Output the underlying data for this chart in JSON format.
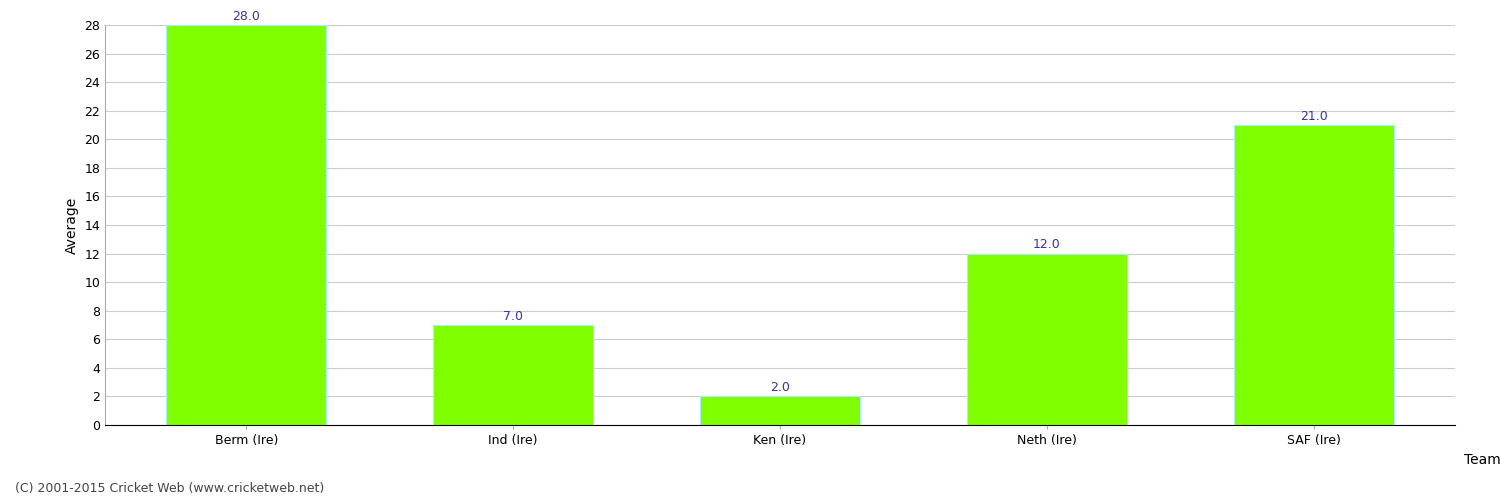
{
  "categories": [
    "Berm (Ire)",
    "Ind (Ire)",
    "Ken (Ire)",
    "Neth (Ire)",
    "SAF (Ire)"
  ],
  "values": [
    28.0,
    7.0,
    2.0,
    12.0,
    21.0
  ],
  "bar_color": "#7FFF00",
  "bar_edgecolor": "#aaeeff",
  "xlabel": "Team",
  "ylabel": "Average",
  "ylim": [
    0,
    28
  ],
  "yticks": [
    0,
    2,
    4,
    6,
    8,
    10,
    12,
    14,
    16,
    18,
    20,
    22,
    24,
    26,
    28
  ],
  "label_color": "#3333aa",
  "label_fontsize": 9,
  "axis_label_fontsize": 10,
  "tick_fontsize": 9,
  "background_color": "#ffffff",
  "grid_color": "#cccccc",
  "footer_text": "(C) 2001-2015 Cricket Web (www.cricketweb.net)",
  "footer_fontsize": 9,
  "footer_color": "#444444"
}
